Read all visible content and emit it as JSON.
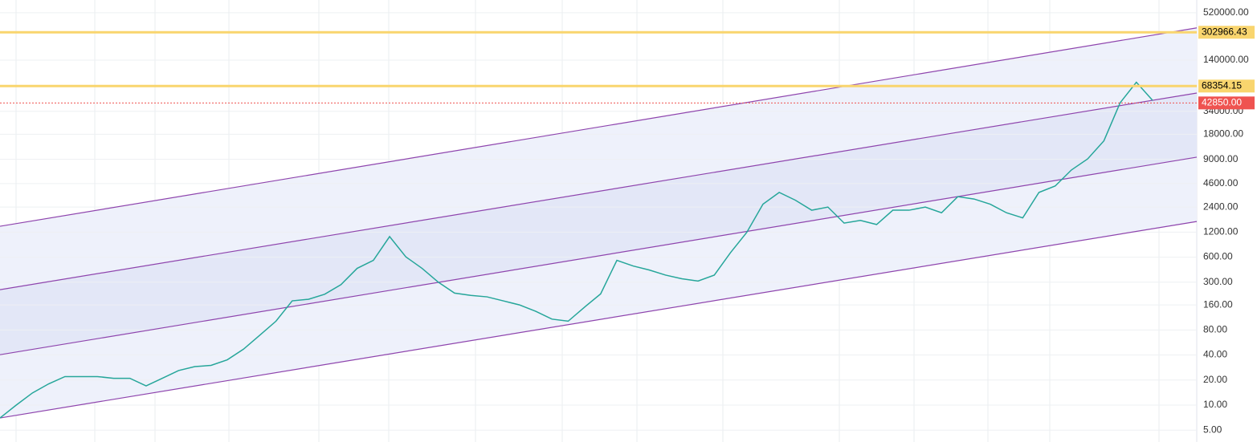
{
  "chart_data": {
    "type": "line",
    "log_scale": true,
    "grid": true,
    "ylim": [
      3.6,
      740000
    ],
    "yticks": [
      {
        "value": 520000,
        "label": "520000.00"
      },
      {
        "value": 140000,
        "label": "140000.00"
      },
      {
        "value": 34000,
        "label": "34000.00"
      },
      {
        "value": 18000,
        "label": "18000.00"
      },
      {
        "value": 9000,
        "label": "9000.00"
      },
      {
        "value": 4600,
        "label": "4600.00"
      },
      {
        "value": 2400,
        "label": "2400.00"
      },
      {
        "value": 1200,
        "label": "1200.00"
      },
      {
        "value": 600,
        "label": "600.00"
      },
      {
        "value": 300,
        "label": "300.00"
      },
      {
        "value": 160,
        "label": "160.00"
      },
      {
        "value": 80,
        "label": "80.00"
      },
      {
        "value": 40,
        "label": "40.00"
      },
      {
        "value": 20,
        "label": "20.00"
      },
      {
        "value": 10,
        "label": "10.00"
      },
      {
        "value": 5,
        "label": "5.00"
      }
    ],
    "categories": [
      null,
      null,
      null,
      null,
      null,
      null,
      null,
      null,
      null,
      null,
      null,
      null,
      null,
      null,
      null,
      null,
      null,
      null,
      null,
      null,
      null,
      null,
      null,
      null,
      null,
      null,
      null,
      null,
      null,
      null,
      null,
      null,
      null,
      null,
      null,
      null,
      null,
      null,
      null,
      null,
      null,
      null,
      null,
      null,
      null,
      null,
      null,
      null,
      null,
      null,
      null,
      null,
      null,
      null,
      null,
      null,
      null,
      null,
      null,
      null,
      null,
      null,
      null,
      null,
      null,
      null,
      null,
      null,
      null,
      null,
      null,
      null
    ],
    "series": [
      {
        "color": "#26a69a",
        "values": [
          7,
          10,
          14,
          18,
          22,
          22,
          22,
          21,
          21,
          17,
          21,
          26,
          29,
          30,
          35,
          47,
          69,
          102,
          179,
          187,
          215,
          280,
          440,
          550,
          1060,
          605,
          440,
          300,
          222,
          208,
          200,
          179,
          160,
          134,
          108,
          102,
          150,
          217,
          550,
          470,
          420,
          365,
          330,
          310,
          365,
          680,
          1190,
          2600,
          3600,
          2900,
          2200,
          2400,
          1540,
          1660,
          1480,
          2200,
          2200,
          2400,
          2050,
          3200,
          3000,
          2600,
          2050,
          1780,
          3600,
          4300,
          6700,
          9100,
          15000,
          43000,
          76000,
          46000
        ]
      }
    ],
    "trend_lines": [
      {
        "start": 1410,
        "end": 342000,
        "color": "#8e44ad"
      },
      {
        "start": 244,
        "end": 56350,
        "color": "#8e44ad"
      },
      {
        "start": 40.3,
        "end": 9550,
        "color": "#8e44ad"
      },
      {
        "start": 7.0,
        "end": 1610,
        "color": "#8e44ad"
      }
    ],
    "channel_fill": "#eef1fb",
    "inner_fill": "#e3e7f7",
    "price_lines": [
      {
        "value": 302966.43,
        "color": "#f9d56e",
        "text_color": "#000000"
      },
      {
        "value": 68354.15,
        "color": "#f9d56e",
        "text_color": "#000000"
      },
      {
        "value": 42850,
        "label": "42850.00",
        "color": "#ef5350",
        "text_color": "#ffffff",
        "dotted": true
      }
    ]
  }
}
